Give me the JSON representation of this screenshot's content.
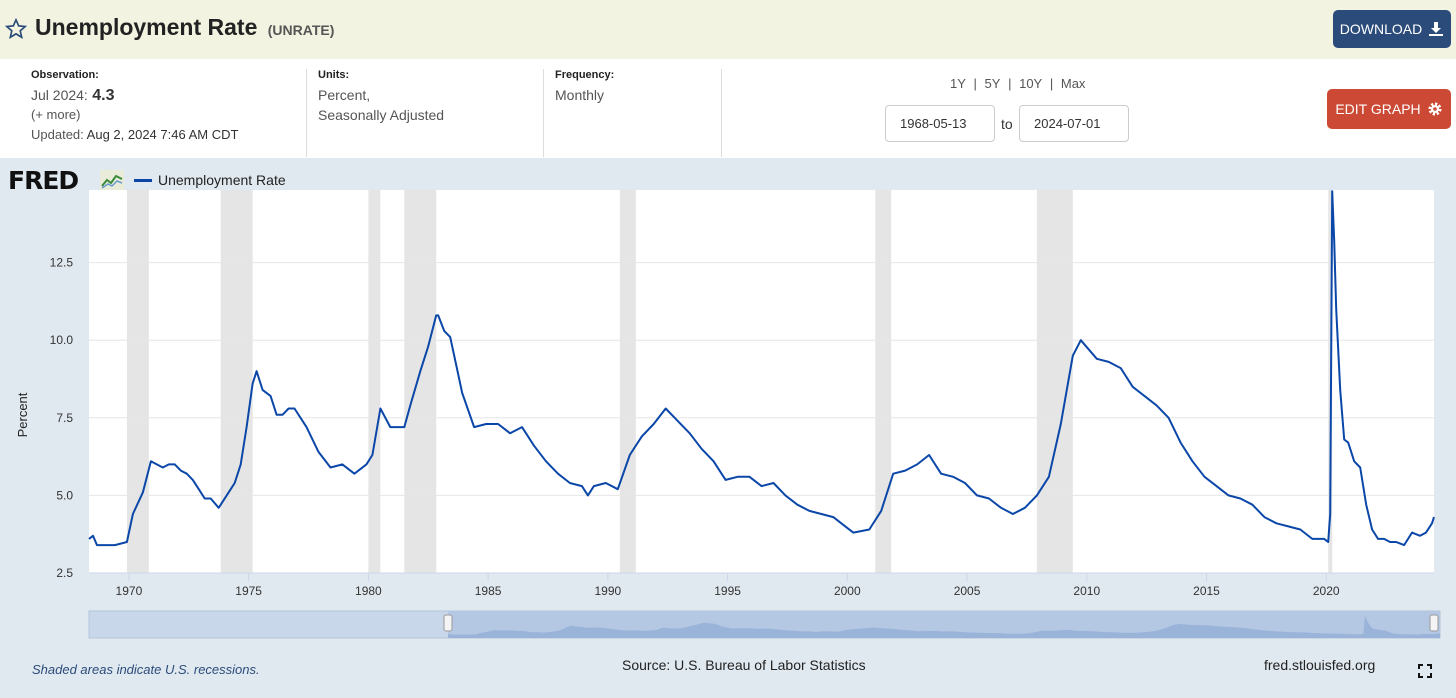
{
  "header": {
    "title": "Unemployment Rate",
    "series_id": "(UNRATE)",
    "download_label": "DOWNLOAD"
  },
  "observation": {
    "label": "Observation:",
    "period": "Jul 2024:",
    "value": "4.3",
    "more": "(+ more)",
    "updated_label": "Updated:",
    "updated_value": "Aug 2, 2024 7:46 AM CDT"
  },
  "units": {
    "label": "Units:",
    "line1": "Percent,",
    "line2": "Seasonally Adjusted"
  },
  "frequency": {
    "label": "Frequency:",
    "value": "Monthly"
  },
  "ranges": [
    "1Y",
    "5Y",
    "10Y",
    "Max"
  ],
  "range_sep": "|",
  "date_from": "1968-05-13",
  "date_to_label": "to",
  "date_to": "2024-07-01",
  "edit_label": "EDIT GRAPH",
  "logo_text": "FRED",
  "legend_label": "Unemployment Rate",
  "footer": {
    "recession_note": "Shaded areas indicate U.S. recessions.",
    "source": "Source: U.S. Bureau of Labor Statistics",
    "site": "fred.stlouisfed.org"
  },
  "colors": {
    "series": "#0b47a8",
    "recession": "#e5e5e5",
    "download_bg": "#2b4b7a",
    "edit_bg": "#cc4a35"
  },
  "icons": [
    "star-icon",
    "download-icon",
    "gear-icon",
    "fred-chart-icon",
    "fullscreen-icon"
  ],
  "chart_data": {
    "type": "line",
    "ylabel": "Percent",
    "xlim": [
      "1968-05",
      "2024-07"
    ],
    "ylim": [
      2.5,
      15.0
    ],
    "yticks": [
      "2.5",
      "5.0",
      "7.5",
      "10.0",
      "12.5",
      "15.0"
    ],
    "xticks": [
      "1970",
      "1975",
      "1980",
      "1985",
      "1990",
      "1995",
      "2000",
      "2005",
      "2010",
      "2015",
      "2020"
    ],
    "grid": true,
    "legend": "top-left",
    "recessions": [
      [
        "1969-12",
        "1970-11"
      ],
      [
        "1973-11",
        "1975-03"
      ],
      [
        "1980-01",
        "1980-07"
      ],
      [
        "1981-07",
        "1982-11"
      ],
      [
        "1990-07",
        "1991-03"
      ],
      [
        "2001-03",
        "2001-11"
      ],
      [
        "2007-12",
        "2009-06"
      ],
      [
        "2020-02",
        "2020-04"
      ]
    ],
    "series": [
      {
        "name": "Unemployment Rate",
        "points": [
          [
            "1968-05",
            3.6
          ],
          [
            "1968-07",
            3.7
          ],
          [
            "1968-09",
            3.4
          ],
          [
            "1969-01",
            3.4
          ],
          [
            "1969-06",
            3.4
          ],
          [
            "1969-12",
            3.5
          ],
          [
            "1970-03",
            4.4
          ],
          [
            "1970-08",
            5.1
          ],
          [
            "1970-12",
            6.1
          ],
          [
            "1971-03",
            6.0
          ],
          [
            "1971-06",
            5.9
          ],
          [
            "1971-09",
            6.0
          ],
          [
            "1971-12",
            6.0
          ],
          [
            "1972-03",
            5.8
          ],
          [
            "1972-06",
            5.7
          ],
          [
            "1972-09",
            5.5
          ],
          [
            "1972-12",
            5.2
          ],
          [
            "1973-03",
            4.9
          ],
          [
            "1973-06",
            4.9
          ],
          [
            "1973-10",
            4.6
          ],
          [
            "1974-03",
            5.1
          ],
          [
            "1974-06",
            5.4
          ],
          [
            "1974-09",
            6.0
          ],
          [
            "1974-12",
            7.2
          ],
          [
            "1975-03",
            8.6
          ],
          [
            "1975-05",
            9.0
          ],
          [
            "1975-08",
            8.4
          ],
          [
            "1975-12",
            8.2
          ],
          [
            "1976-03",
            7.6
          ],
          [
            "1976-06",
            7.6
          ],
          [
            "1976-09",
            7.8
          ],
          [
            "1976-12",
            7.8
          ],
          [
            "1977-06",
            7.2
          ],
          [
            "1977-12",
            6.4
          ],
          [
            "1978-06",
            5.9
          ],
          [
            "1978-12",
            6.0
          ],
          [
            "1979-06",
            5.7
          ],
          [
            "1979-12",
            6.0
          ],
          [
            "1980-03",
            6.3
          ],
          [
            "1980-07",
            7.8
          ],
          [
            "1980-12",
            7.2
          ],
          [
            "1981-04",
            7.2
          ],
          [
            "1981-07",
            7.2
          ],
          [
            "1981-10",
            7.9
          ],
          [
            "1982-03",
            9.0
          ],
          [
            "1982-07",
            9.8
          ],
          [
            "1982-11",
            10.8
          ],
          [
            "1982-12",
            10.8
          ],
          [
            "1983-03",
            10.3
          ],
          [
            "1983-06",
            10.1
          ],
          [
            "1983-09",
            9.2
          ],
          [
            "1983-12",
            8.3
          ],
          [
            "1984-06",
            7.2
          ],
          [
            "1984-12",
            7.3
          ],
          [
            "1985-06",
            7.3
          ],
          [
            "1985-12",
            7.0
          ],
          [
            "1986-06",
            7.2
          ],
          [
            "1986-12",
            6.6
          ],
          [
            "1987-06",
            6.1
          ],
          [
            "1987-12",
            5.7
          ],
          [
            "1988-06",
            5.4
          ],
          [
            "1988-12",
            5.3
          ],
          [
            "1989-03",
            5.0
          ],
          [
            "1989-06",
            5.3
          ],
          [
            "1989-12",
            5.4
          ],
          [
            "1990-06",
            5.2
          ],
          [
            "1990-12",
            6.3
          ],
          [
            "1991-06",
            6.9
          ],
          [
            "1991-12",
            7.3
          ],
          [
            "1992-06",
            7.8
          ],
          [
            "1992-12",
            7.4
          ],
          [
            "1993-06",
            7.0
          ],
          [
            "1993-12",
            6.5
          ],
          [
            "1994-06",
            6.1
          ],
          [
            "1994-12",
            5.5
          ],
          [
            "1995-06",
            5.6
          ],
          [
            "1995-12",
            5.6
          ],
          [
            "1996-06",
            5.3
          ],
          [
            "1996-12",
            5.4
          ],
          [
            "1997-06",
            5.0
          ],
          [
            "1997-12",
            4.7
          ],
          [
            "1998-06",
            4.5
          ],
          [
            "1998-12",
            4.4
          ],
          [
            "1999-06",
            4.3
          ],
          [
            "1999-12",
            4.0
          ],
          [
            "2000-04",
            3.8
          ],
          [
            "2000-12",
            3.9
          ],
          [
            "2001-06",
            4.5
          ],
          [
            "2001-12",
            5.7
          ],
          [
            "2002-06",
            5.8
          ],
          [
            "2002-12",
            6.0
          ],
          [
            "2003-06",
            6.3
          ],
          [
            "2003-12",
            5.7
          ],
          [
            "2004-06",
            5.6
          ],
          [
            "2004-12",
            5.4
          ],
          [
            "2005-06",
            5.0
          ],
          [
            "2005-12",
            4.9
          ],
          [
            "2006-06",
            4.6
          ],
          [
            "2006-12",
            4.4
          ],
          [
            "2007-06",
            4.6
          ],
          [
            "2007-12",
            5.0
          ],
          [
            "2008-06",
            5.6
          ],
          [
            "2008-12",
            7.3
          ],
          [
            "2009-06",
            9.5
          ],
          [
            "2009-10",
            10.0
          ],
          [
            "2010-06",
            9.4
          ],
          [
            "2010-12",
            9.3
          ],
          [
            "2011-06",
            9.1
          ],
          [
            "2011-12",
            8.5
          ],
          [
            "2012-06",
            8.2
          ],
          [
            "2012-12",
            7.9
          ],
          [
            "2013-06",
            7.5
          ],
          [
            "2013-12",
            6.7
          ],
          [
            "2014-06",
            6.1
          ],
          [
            "2014-12",
            5.6
          ],
          [
            "2015-06",
            5.3
          ],
          [
            "2015-12",
            5.0
          ],
          [
            "2016-06",
            4.9
          ],
          [
            "2016-12",
            4.7
          ],
          [
            "2017-06",
            4.3
          ],
          [
            "2017-12",
            4.1
          ],
          [
            "2018-06",
            4.0
          ],
          [
            "2018-12",
            3.9
          ],
          [
            "2019-06",
            3.6
          ],
          [
            "2019-12",
            3.6
          ],
          [
            "2020-02",
            3.5
          ],
          [
            "2020-03",
            4.4
          ],
          [
            "2020-04",
            14.8
          ],
          [
            "2020-05",
            13.2
          ],
          [
            "2020-06",
            11.0
          ],
          [
            "2020-08",
            8.4
          ],
          [
            "2020-10",
            6.8
          ],
          [
            "2020-12",
            6.7
          ],
          [
            "2021-03",
            6.1
          ],
          [
            "2021-06",
            5.9
          ],
          [
            "2021-09",
            4.7
          ],
          [
            "2021-12",
            3.9
          ],
          [
            "2022-03",
            3.6
          ],
          [
            "2022-06",
            3.6
          ],
          [
            "2022-09",
            3.5
          ],
          [
            "2022-12",
            3.5
          ],
          [
            "2023-04",
            3.4
          ],
          [
            "2023-08",
            3.8
          ],
          [
            "2023-12",
            3.7
          ],
          [
            "2024-03",
            3.8
          ],
          [
            "2024-06",
            4.1
          ],
          [
            "2024-07",
            4.3
          ]
        ]
      }
    ]
  }
}
